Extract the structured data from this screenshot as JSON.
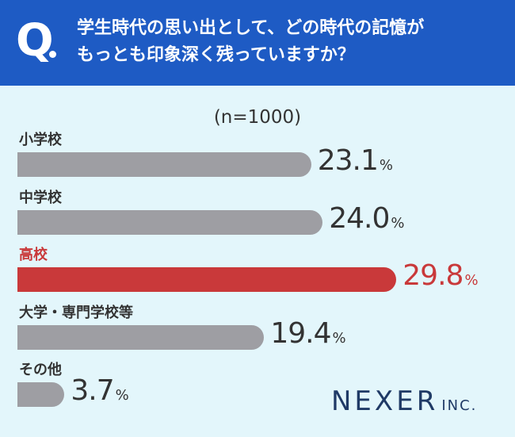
{
  "header": {
    "q_mark": "Q",
    "question_line1": "学生時代の思い出として、どの時代の記憶が",
    "question_line2": "もっとも印象深く残っていますか？"
  },
  "colors": {
    "header_bg": "#1e5bc4",
    "background": "#e3f6fb",
    "bar_default": "#9e9ea3",
    "highlight": "#c9393a",
    "text": "#333333",
    "logo": "#1f3a66"
  },
  "chart_data": {
    "type": "bar",
    "orientation": "horizontal",
    "sample_size_label": "(n=1000)",
    "categories": [
      "小学校",
      "中学校",
      "高校",
      "大学・専門学校等",
      "その他"
    ],
    "values": [
      23.1,
      24.0,
      29.8,
      19.4,
      3.7
    ],
    "value_labels": [
      "23.1",
      "24.0",
      "29.8",
      "19.4",
      "3.7"
    ],
    "unit": "%",
    "highlight_category": "高校",
    "grid": false,
    "legend": "none"
  },
  "logo": {
    "main": "NEXER",
    "sub": "INC."
  }
}
